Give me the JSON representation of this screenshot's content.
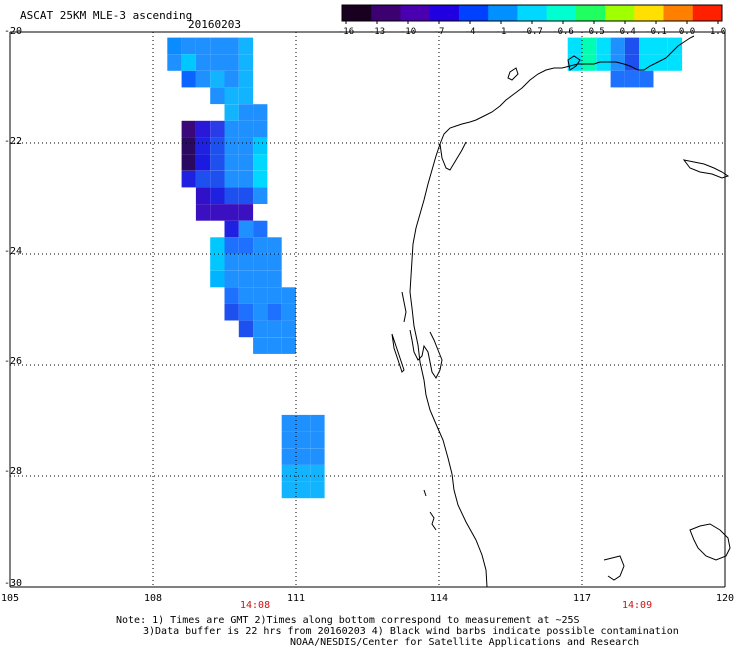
{
  "header": {
    "title": "ASCAT 25KM MLE-3 ascending",
    "date": "20160203"
  },
  "colorbar": {
    "labels": [
      "-16",
      "-13",
      "-10",
      "-7",
      "-4",
      "-1",
      "-0.7",
      "-0.6",
      "-0.5",
      "-0.4",
      "-0.1",
      "0.0",
      "1.0"
    ],
    "colors": [
      "#1a0020",
      "#3d0070",
      "#4a00b0",
      "#2000e0",
      "#0040ff",
      "#0090ff",
      "#00d8ff",
      "#00ffd0",
      "#20ff60",
      "#a0ff00",
      "#ffe000",
      "#ff8000",
      "#ff2000"
    ]
  },
  "axes": {
    "lat_labels": [
      "-20",
      "-22",
      "-24",
      "-26",
      "-28",
      "-30"
    ],
    "lon_labels": [
      "105",
      "108",
      "111",
      "114",
      "117",
      "120"
    ]
  },
  "times": [
    "14:08",
    "14:09"
  ],
  "notes": [
    "Note: 1) Times are GMT 2)Times along bottom correspond to measurement at ~25S",
    "3)Data buffer is 22 hrs from 20160203 4) Black wind barbs indicate possible contamination",
    "NOAA/NESDIS/Center for Satellite Applications and Research"
  ],
  "map_data": {
    "lat_range": [
      -30,
      -20
    ],
    "lon_range": [
      105,
      120
    ],
    "swath_cells": [
      {
        "lon": 108.3,
        "lat": -20.1,
        "value": -4,
        "color": "#0a8cff"
      },
      {
        "lon": 108.6,
        "lat": -20.1,
        "value": -4,
        "color": "#1e90ff"
      },
      {
        "lon": 108.9,
        "lat": -20.1,
        "value": -4,
        "color": "#1e90ff"
      },
      {
        "lon": 109.2,
        "lat": -20.1,
        "value": -4,
        "color": "#1e90ff"
      },
      {
        "lon": 109.5,
        "lat": -20.1,
        "value": -4,
        "color": "#1e90ff"
      },
      {
        "lon": 109.8,
        "lat": -20.1,
        "value": -1,
        "color": "#12b4ff"
      },
      {
        "lon": 108.3,
        "lat": -20.4,
        "value": -4,
        "color": "#1e90ff"
      },
      {
        "lon": 108.6,
        "lat": -20.4,
        "value": -1,
        "color": "#00c8ff"
      },
      {
        "lon": 108.9,
        "lat": -20.4,
        "value": -4,
        "color": "#1e90ff"
      },
      {
        "lon": 109.2,
        "lat": -20.4,
        "value": -4,
        "color": "#1e90ff"
      },
      {
        "lon": 109.5,
        "lat": -20.4,
        "value": -4,
        "color": "#1e90ff"
      },
      {
        "lon": 109.8,
        "lat": -20.4,
        "value": -1,
        "color": "#12b4ff"
      },
      {
        "lon": 108.6,
        "lat": -20.7,
        "value": -4,
        "color": "#0a64ff"
      },
      {
        "lon": 108.9,
        "lat": -20.7,
        "value": -4,
        "color": "#1e90ff"
      },
      {
        "lon": 109.2,
        "lat": -20.7,
        "value": -1,
        "color": "#12b4ff"
      },
      {
        "lon": 109.5,
        "lat": -20.7,
        "value": -4,
        "color": "#1e90ff"
      },
      {
        "lon": 109.8,
        "lat": -20.7,
        "value": -1,
        "color": "#12b4ff"
      },
      {
        "lon": 109.2,
        "lat": -21.0,
        "value": -4,
        "color": "#1e90ff"
      },
      {
        "lon": 109.5,
        "lat": -21.0,
        "value": -1,
        "color": "#12b4ff"
      },
      {
        "lon": 109.8,
        "lat": -21.0,
        "value": -1,
        "color": "#12b4ff"
      },
      {
        "lon": 109.5,
        "lat": -21.3,
        "value": -1,
        "color": "#12b4ff"
      },
      {
        "lon": 109.8,
        "lat": -21.3,
        "value": -4,
        "color": "#1e90ff"
      },
      {
        "lon": 110.1,
        "lat": -21.3,
        "value": -4,
        "color": "#1e90ff"
      },
      {
        "lon": 108.6,
        "lat": -21.6,
        "value": -13,
        "color": "#3a0878"
      },
      {
        "lon": 108.9,
        "lat": -21.6,
        "value": -7,
        "color": "#2a18d8"
      },
      {
        "lon": 109.2,
        "lat": -21.6,
        "value": -7,
        "color": "#2a3ce8"
      },
      {
        "lon": 109.5,
        "lat": -21.6,
        "value": -4,
        "color": "#1e90ff"
      },
      {
        "lon": 109.8,
        "lat": -21.6,
        "value": -4,
        "color": "#1e90ff"
      },
      {
        "lon": 110.1,
        "lat": -21.6,
        "value": -4,
        "color": "#1e90ff"
      },
      {
        "lon": 108.6,
        "lat": -21.9,
        "value": -13,
        "color": "#2a0a60"
      },
      {
        "lon": 108.9,
        "lat": -21.9,
        "value": -10,
        "color": "#2020e0"
      },
      {
        "lon": 109.2,
        "lat": -21.9,
        "value": -7,
        "color": "#1e50f0"
      },
      {
        "lon": 109.5,
        "lat": -21.9,
        "value": -4,
        "color": "#1e90ff"
      },
      {
        "lon": 109.8,
        "lat": -21.9,
        "value": -4,
        "color": "#1e90ff"
      },
      {
        "lon": 110.1,
        "lat": -21.9,
        "value": -1,
        "color": "#00c8ff"
      },
      {
        "lon": 108.6,
        "lat": -22.2,
        "value": -13,
        "color": "#2a0a60"
      },
      {
        "lon": 108.9,
        "lat": -22.2,
        "value": -10,
        "color": "#1a1ae0"
      },
      {
        "lon": 109.2,
        "lat": -22.2,
        "value": -7,
        "color": "#1e50f0"
      },
      {
        "lon": 109.5,
        "lat": -22.2,
        "value": -4,
        "color": "#1e90ff"
      },
      {
        "lon": 109.8,
        "lat": -22.2,
        "value": -4,
        "color": "#1e90ff"
      },
      {
        "lon": 110.1,
        "lat": -22.2,
        "value": -1,
        "color": "#00d8ff"
      },
      {
        "lon": 108.6,
        "lat": -22.5,
        "value": -10,
        "color": "#2020e0"
      },
      {
        "lon": 108.9,
        "lat": -22.5,
        "value": -7,
        "color": "#1e50f0"
      },
      {
        "lon": 109.2,
        "lat": -22.5,
        "value": -7,
        "color": "#1e50f0"
      },
      {
        "lon": 109.5,
        "lat": -22.5,
        "value": -4,
        "color": "#1e90ff"
      },
      {
        "lon": 109.8,
        "lat": -22.5,
        "value": -4,
        "color": "#1e90ff"
      },
      {
        "lon": 110.1,
        "lat": -22.5,
        "value": -1,
        "color": "#00d8ff"
      },
      {
        "lon": 108.9,
        "lat": -22.8,
        "value": -10,
        "color": "#3010c8"
      },
      {
        "lon": 109.2,
        "lat": -22.8,
        "value": -10,
        "color": "#2020e0"
      },
      {
        "lon": 109.5,
        "lat": -22.8,
        "value": -7,
        "color": "#1e50f0"
      },
      {
        "lon": 109.8,
        "lat": -22.8,
        "value": -7,
        "color": "#1e50f0"
      },
      {
        "lon": 110.1,
        "lat": -22.8,
        "value": -4,
        "color": "#1e90ff"
      },
      {
        "lon": 108.9,
        "lat": -23.1,
        "value": -10,
        "color": "#3a10c0"
      },
      {
        "lon": 109.2,
        "lat": -23.1,
        "value": -10,
        "color": "#3a10c0"
      },
      {
        "lon": 109.5,
        "lat": -23.1,
        "value": -10,
        "color": "#3a10c0"
      },
      {
        "lon": 109.8,
        "lat": -23.1,
        "value": -10,
        "color": "#3a10c0"
      },
      {
        "lon": 109.5,
        "lat": -23.4,
        "value": -7,
        "color": "#2020e0"
      },
      {
        "lon": 109.8,
        "lat": -23.4,
        "value": -4,
        "color": "#1e90ff"
      },
      {
        "lon": 110.1,
        "lat": -23.4,
        "value": -4,
        "color": "#1e70ff"
      },
      {
        "lon": 109.2,
        "lat": -23.7,
        "value": -1,
        "color": "#00c8ff"
      },
      {
        "lon": 109.5,
        "lat": -23.7,
        "value": -4,
        "color": "#1e70ff"
      },
      {
        "lon": 109.8,
        "lat": -23.7,
        "value": -4,
        "color": "#1e70ff"
      },
      {
        "lon": 110.1,
        "lat": -23.7,
        "value": -4,
        "color": "#1e90ff"
      },
      {
        "lon": 110.4,
        "lat": -23.7,
        "value": -4,
        "color": "#1e90ff"
      },
      {
        "lon": 109.2,
        "lat": -24.0,
        "value": -1,
        "color": "#00c8ff"
      },
      {
        "lon": 109.5,
        "lat": -24.0,
        "value": -4,
        "color": "#1e90ff"
      },
      {
        "lon": 109.8,
        "lat": -24.0,
        "value": -4,
        "color": "#1e90ff"
      },
      {
        "lon": 110.1,
        "lat": -24.0,
        "value": -4,
        "color": "#1e90ff"
      },
      {
        "lon": 110.4,
        "lat": -24.0,
        "value": -4,
        "color": "#1e90ff"
      },
      {
        "lon": 109.2,
        "lat": -24.3,
        "value": -1,
        "color": "#00b4ff"
      },
      {
        "lon": 109.5,
        "lat": -24.3,
        "value": -4,
        "color": "#1e90ff"
      },
      {
        "lon": 109.8,
        "lat": -24.3,
        "value": -4,
        "color": "#1e90ff"
      },
      {
        "lon": 110.1,
        "lat": -24.3,
        "value": -4,
        "color": "#1e90ff"
      },
      {
        "lon": 110.4,
        "lat": -24.3,
        "value": -4,
        "color": "#1e90ff"
      },
      {
        "lon": 109.5,
        "lat": -24.6,
        "value": -4,
        "color": "#1e70ff"
      },
      {
        "lon": 109.8,
        "lat": -24.6,
        "value": -4,
        "color": "#1e90ff"
      },
      {
        "lon": 110.1,
        "lat": -24.6,
        "value": -4,
        "color": "#1e90ff"
      },
      {
        "lon": 110.4,
        "lat": -24.6,
        "value": -4,
        "color": "#1e90ff"
      },
      {
        "lon": 110.7,
        "lat": -24.6,
        "value": -4,
        "color": "#1e90ff"
      },
      {
        "lon": 109.5,
        "lat": -24.9,
        "value": -7,
        "color": "#1e50f0"
      },
      {
        "lon": 109.8,
        "lat": -24.9,
        "value": -4,
        "color": "#1e70ff"
      },
      {
        "lon": 110.1,
        "lat": -24.9,
        "value": -4,
        "color": "#1e90ff"
      },
      {
        "lon": 110.4,
        "lat": -24.9,
        "value": -4,
        "color": "#1e70ff"
      },
      {
        "lon": 110.7,
        "lat": -24.9,
        "value": -4,
        "color": "#1e90ff"
      },
      {
        "lon": 109.8,
        "lat": -25.2,
        "value": -7,
        "color": "#1e50f0"
      },
      {
        "lon": 110.1,
        "lat": -25.2,
        "value": -4,
        "color": "#1e90ff"
      },
      {
        "lon": 110.4,
        "lat": -25.2,
        "value": -4,
        "color": "#1e90ff"
      },
      {
        "lon": 110.7,
        "lat": -25.2,
        "value": -4,
        "color": "#1e90ff"
      },
      {
        "lon": 110.1,
        "lat": -25.5,
        "value": -4,
        "color": "#1e90ff"
      },
      {
        "lon": 110.4,
        "lat": -25.5,
        "value": -4,
        "color": "#1e90ff"
      },
      {
        "lon": 110.7,
        "lat": -25.5,
        "value": -4,
        "color": "#1e90ff"
      },
      {
        "lon": 110.7,
        "lat": -26.9,
        "value": -4,
        "color": "#1e90ff"
      },
      {
        "lon": 111.0,
        "lat": -26.9,
        "value": -4,
        "color": "#1e90ff"
      },
      {
        "lon": 111.3,
        "lat": -26.9,
        "value": -4,
        "color": "#1e90ff"
      },
      {
        "lon": 110.7,
        "lat": -27.2,
        "value": -4,
        "color": "#1e90ff"
      },
      {
        "lon": 111.0,
        "lat": -27.2,
        "value": -4,
        "color": "#1e90ff"
      },
      {
        "lon": 111.3,
        "lat": -27.2,
        "value": -4,
        "color": "#1e90ff"
      },
      {
        "lon": 110.7,
        "lat": -27.5,
        "value": -4,
        "color": "#1e90ff"
      },
      {
        "lon": 111.0,
        "lat": -27.5,
        "value": -4,
        "color": "#1e90ff"
      },
      {
        "lon": 111.3,
        "lat": -27.5,
        "value": -4,
        "color": "#1e90ff"
      },
      {
        "lon": 110.7,
        "lat": -27.8,
        "value": -1,
        "color": "#12b4ff"
      },
      {
        "lon": 111.0,
        "lat": -27.8,
        "value": -1,
        "color": "#12b4ff"
      },
      {
        "lon": 111.3,
        "lat": -27.8,
        "value": -1,
        "color": "#12b4ff"
      },
      {
        "lon": 110.7,
        "lat": -28.1,
        "value": -1,
        "color": "#12b4ff"
      },
      {
        "lon": 111.0,
        "lat": -28.1,
        "value": -1,
        "color": "#12b4ff"
      },
      {
        "lon": 111.3,
        "lat": -28.1,
        "value": -1,
        "color": "#12b4ff"
      },
      {
        "lon": 116.7,
        "lat": -20.1,
        "value": -1,
        "color": "#00e0ff"
      },
      {
        "lon": 117.0,
        "lat": -20.1,
        "value": -0.6,
        "color": "#00ffb0"
      },
      {
        "lon": 117.3,
        "lat": -20.1,
        "value": -1,
        "color": "#00e0ff"
      },
      {
        "lon": 117.6,
        "lat": -20.1,
        "value": -4,
        "color": "#1e90ff"
      },
      {
        "lon": 117.9,
        "lat": -20.1,
        "value": -4,
        "color": "#1e50f0"
      },
      {
        "lon": 118.2,
        "lat": -20.1,
        "value": -1,
        "color": "#00e0ff"
      },
      {
        "lon": 118.5,
        "lat": -20.1,
        "value": -1,
        "color": "#00e0ff"
      },
      {
        "lon": 118.8,
        "lat": -20.1,
        "value": -1,
        "color": "#00e0ff"
      },
      {
        "lon": 116.7,
        "lat": -20.4,
        "value": -1,
        "color": "#00e0ff"
      },
      {
        "lon": 117.0,
        "lat": -20.4,
        "value": -0.6,
        "color": "#00ffb0"
      },
      {
        "lon": 117.3,
        "lat": -20.4,
        "value": -1,
        "color": "#00e0ff"
      },
      {
        "lon": 117.6,
        "lat": -20.4,
        "value": -4,
        "color": "#1e90ff"
      },
      {
        "lon": 117.9,
        "lat": -20.4,
        "value": -7,
        "color": "#1e50f0"
      },
      {
        "lon": 118.2,
        "lat": -20.4,
        "value": -1,
        "color": "#00e0ff"
      },
      {
        "lon": 118.5,
        "lat": -20.4,
        "value": -1,
        "color": "#00e0ff"
      },
      {
        "lon": 118.8,
        "lat": -20.4,
        "value": -1,
        "color": "#00e0ff"
      },
      {
        "lon": 117.6,
        "lat": -20.7,
        "value": -4,
        "color": "#1e70ff"
      },
      {
        "lon": 117.9,
        "lat": -20.7,
        "value": -4,
        "color": "#1e70ff"
      },
      {
        "lon": 118.2,
        "lat": -20.7,
        "value": -4,
        "color": "#1e70ff"
      }
    ]
  }
}
